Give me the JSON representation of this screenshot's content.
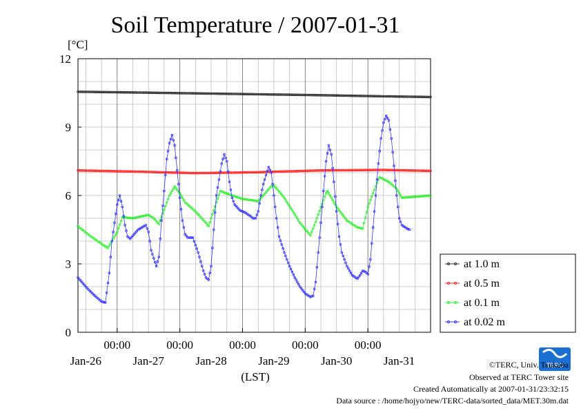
{
  "chart_data": {
    "type": "line",
    "title": "Soil Temperature / 2007-01-31",
    "y_unit": "[°C]",
    "xlabel": "(LST)",
    "ylim": [
      0,
      12
    ],
    "y_ticks": [
      "0",
      "3",
      "6",
      "9",
      "12"
    ],
    "x_tick_time_labels": [
      "00:00",
      "00:00",
      "00:00",
      "00:00",
      "00:00"
    ],
    "x_date_labels": [
      "Jan-26",
      "Jan-27",
      "Jan-28",
      "Jan-29",
      "Jan-30",
      "Jan-31"
    ],
    "x_range_hours_from_jan25_00": [
      9,
      144
    ],
    "grid": true,
    "legend_position": "right",
    "series": [
      {
        "name": "at 1.0 m",
        "color": "#333333",
        "points": [
          [
            9,
            10.55
          ],
          [
            30,
            10.52
          ],
          [
            54,
            10.48
          ],
          [
            78,
            10.44
          ],
          [
            102,
            10.4
          ],
          [
            126,
            10.35
          ],
          [
            144,
            10.32
          ]
        ]
      },
      {
        "name": "at 0.5 m",
        "color": "#ff2a2a",
        "points": [
          [
            9,
            7.1
          ],
          [
            30,
            7.05
          ],
          [
            54,
            6.98
          ],
          [
            78,
            7.02
          ],
          [
            102,
            7.1
          ],
          [
            126,
            7.12
          ],
          [
            144,
            7.08
          ]
        ]
      },
      {
        "name": "at 0.1 m",
        "color": "#33ee33",
        "points": [
          [
            9,
            4.65
          ],
          [
            14,
            4.2
          ],
          [
            19,
            3.8
          ],
          [
            20.5,
            3.7
          ],
          [
            24,
            4.4
          ],
          [
            26,
            5.05
          ],
          [
            30,
            5.0
          ],
          [
            34,
            5.1
          ],
          [
            36,
            5.15
          ],
          [
            38,
            5.0
          ],
          [
            40,
            4.75
          ],
          [
            44,
            6.0
          ],
          [
            46,
            6.4
          ],
          [
            48,
            6.1
          ],
          [
            50,
            5.7
          ],
          [
            54,
            5.3
          ],
          [
            58,
            4.8
          ],
          [
            59,
            4.65
          ],
          [
            62,
            5.7
          ],
          [
            63.5,
            6.2
          ],
          [
            68,
            6.0
          ],
          [
            72,
            5.85
          ],
          [
            78,
            5.75
          ],
          [
            83,
            6.4
          ],
          [
            84,
            6.45
          ],
          [
            88,
            5.9
          ],
          [
            94,
            4.8
          ],
          [
            98,
            4.25
          ],
          [
            100,
            4.85
          ],
          [
            104,
            6.1
          ],
          [
            104.5,
            6.2
          ],
          [
            108,
            5.5
          ],
          [
            112,
            4.9
          ],
          [
            116,
            4.6
          ],
          [
            118,
            4.55
          ],
          [
            120,
            5.5
          ],
          [
            124,
            6.7
          ],
          [
            124.5,
            6.8
          ],
          [
            128,
            6.6
          ],
          [
            131,
            6.3
          ],
          [
            133,
            5.9
          ],
          [
            144,
            6.0
          ]
        ]
      },
      {
        "name": "at 0.02 m",
        "color": "#3333ff",
        "points": [
          [
            9,
            2.4
          ],
          [
            12,
            2.0
          ],
          [
            15,
            1.65
          ],
          [
            18,
            1.35
          ],
          [
            19.5,
            1.3
          ],
          [
            21,
            2.6
          ],
          [
            22,
            4.0
          ],
          [
            24,
            5.6
          ],
          [
            25,
            6.0
          ],
          [
            26,
            5.5
          ],
          [
            27,
            4.7
          ],
          [
            28,
            4.2
          ],
          [
            29,
            4.1
          ],
          [
            32,
            4.5
          ],
          [
            35,
            4.7
          ],
          [
            36,
            4.4
          ],
          [
            37,
            3.6
          ],
          [
            39,
            2.9
          ],
          [
            40,
            3.3
          ],
          [
            41,
            4.9
          ],
          [
            42,
            6.2
          ],
          [
            43,
            7.6
          ],
          [
            44,
            8.3
          ],
          [
            45,
            8.65
          ],
          [
            46,
            8.2
          ],
          [
            47,
            7.1
          ],
          [
            48,
            5.9
          ],
          [
            49,
            4.9
          ],
          [
            50,
            4.3
          ],
          [
            51,
            4.15
          ],
          [
            53,
            4.15
          ],
          [
            55,
            3.5
          ],
          [
            57,
            2.7
          ],
          [
            58,
            2.4
          ],
          [
            59,
            2.3
          ],
          [
            60,
            2.9
          ],
          [
            61,
            4.5
          ],
          [
            62,
            6.0
          ],
          [
            64,
            7.4
          ],
          [
            65,
            7.8
          ],
          [
            66,
            7.5
          ],
          [
            67,
            6.6
          ],
          [
            68,
            5.9
          ],
          [
            69,
            5.6
          ],
          [
            71,
            5.35
          ],
          [
            73,
            5.25
          ],
          [
            75,
            5.1
          ],
          [
            76,
            5.0
          ],
          [
            77,
            5.0
          ],
          [
            78,
            5.3
          ],
          [
            79,
            6.0
          ],
          [
            80,
            6.5
          ],
          [
            81,
            6.9
          ],
          [
            82,
            7.25
          ],
          [
            83,
            7.0
          ],
          [
            84,
            6.0
          ],
          [
            85,
            5.0
          ],
          [
            86,
            4.2
          ],
          [
            88,
            3.5
          ],
          [
            90,
            2.9
          ],
          [
            92,
            2.4
          ],
          [
            94,
            2.0
          ],
          [
            96,
            1.7
          ],
          [
            98,
            1.55
          ],
          [
            99,
            1.6
          ],
          [
            100,
            2.2
          ],
          [
            101,
            3.5
          ],
          [
            102,
            4.8
          ],
          [
            103,
            6.2
          ],
          [
            104,
            7.5
          ],
          [
            105,
            8.2
          ],
          [
            106,
            7.8
          ],
          [
            107,
            6.6
          ],
          [
            108,
            5.3
          ],
          [
            109,
            4.2
          ],
          [
            110,
            3.5
          ],
          [
            112,
            2.9
          ],
          [
            114,
            2.5
          ],
          [
            116,
            2.35
          ],
          [
            117,
            2.5
          ],
          [
            118,
            2.7
          ],
          [
            119,
            2.65
          ],
          [
            120,
            2.55
          ],
          [
            121,
            3.2
          ],
          [
            122,
            4.6
          ],
          [
            123,
            6.0
          ],
          [
            124,
            7.4
          ],
          [
            125,
            8.5
          ],
          [
            126,
            9.2
          ],
          [
            127,
            9.5
          ],
          [
            128,
            9.3
          ],
          [
            129,
            8.5
          ],
          [
            130,
            7.3
          ],
          [
            131,
            6.0
          ],
          [
            132,
            5.0
          ],
          [
            133,
            4.7
          ],
          [
            135,
            4.55
          ],
          [
            136,
            4.5
          ]
        ]
      }
    ]
  },
  "credits": {
    "line1": "©TERC, Univ. Tsukuba",
    "line2": "Observed at TERC Tower site",
    "line3": "Created Automatically at 2007-01-31/23:32:15",
    "line4": "Data source : /home/hojyo/new/TERC-data/sorted_data/MET.30m.dat"
  },
  "logo": {
    "text": "TERC",
    "color": "#1a6fd1"
  }
}
